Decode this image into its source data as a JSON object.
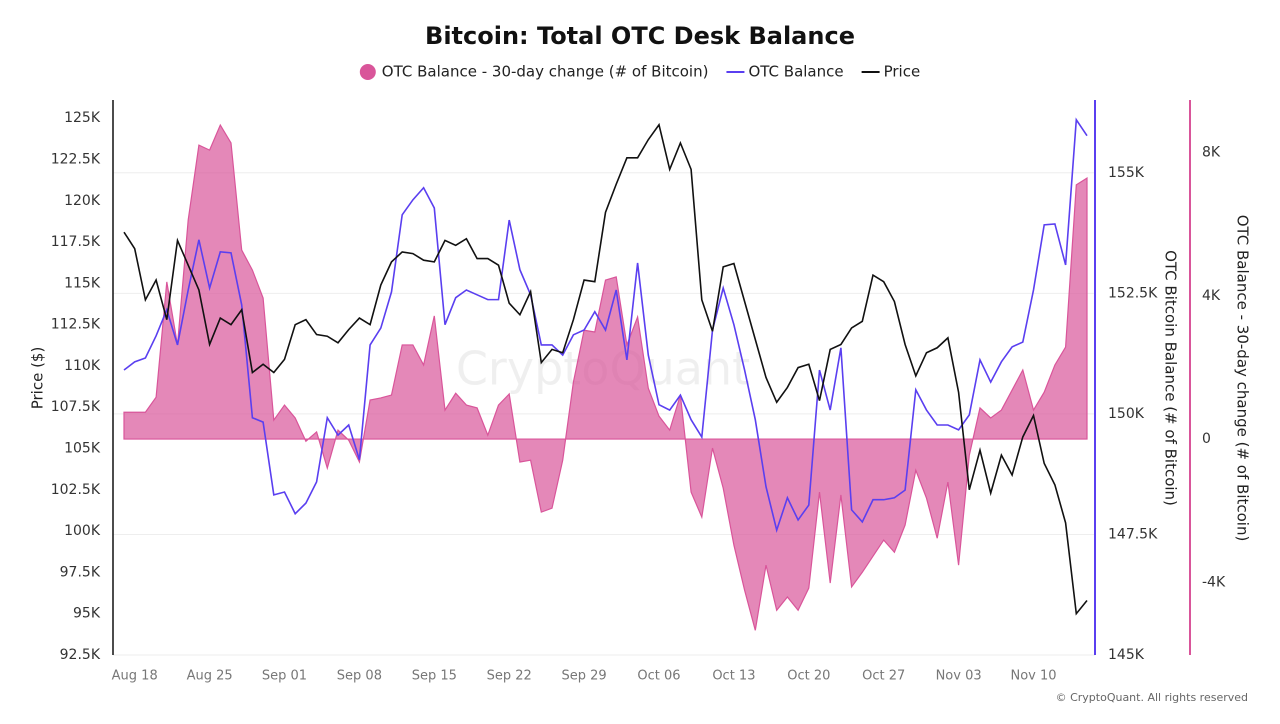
{
  "chart_data": {
    "type": "line",
    "title": "Bitcoin: Total OTC Desk Balance",
    "watermark": "CryptoQuant",
    "footer": "© CryptoQuant. All rights reserved",
    "ylabel": "Price ($)",
    "y2label": "OTC Bitcoin Balance (# of Bitcoin)",
    "y3label": "OTC Balance - 30-day change (# of Bitcoin)",
    "legend": "top",
    "grid": true,
    "categories": [
      null,
      "Aug 18",
      null,
      null,
      null,
      null,
      null,
      null,
      "Aug 25",
      null,
      null,
      null,
      null,
      null,
      null,
      "Sep 01",
      null,
      null,
      null,
      null,
      null,
      null,
      "Sep 08",
      null,
      null,
      null,
      null,
      null,
      null,
      "Sep 15",
      null,
      null,
      null,
      null,
      null,
      null,
      "Sep 22",
      null,
      null,
      null,
      null,
      null,
      null,
      "Sep 29",
      null,
      null,
      null,
      null,
      null,
      null,
      "Oct 06",
      null,
      null,
      null,
      null,
      null,
      null,
      "Oct 13",
      null,
      null,
      null,
      null,
      null,
      null,
      "Oct 20",
      null,
      null,
      null,
      null,
      null,
      null,
      "Oct 27",
      null,
      null,
      null,
      null,
      null,
      null,
      "Nov 03",
      null,
      null,
      null,
      null,
      null,
      null,
      "Nov 10",
      null,
      null,
      null,
      null,
      null
    ],
    "ylim": [
      92500,
      126100
    ],
    "yticks": [
      {
        "value": 92500,
        "label": "92.5K"
      },
      {
        "value": 95000,
        "label": "95K"
      },
      {
        "value": 97500,
        "label": "97.5K"
      },
      {
        "value": 100000,
        "label": "100K"
      },
      {
        "value": 102500,
        "label": "102.5K"
      },
      {
        "value": 105000,
        "label": "105K"
      },
      {
        "value": 107500,
        "label": "107.5K"
      },
      {
        "value": 110000,
        "label": "110K"
      },
      {
        "value": 112500,
        "label": "112.5K"
      },
      {
        "value": 115000,
        "label": "115K"
      },
      {
        "value": 117500,
        "label": "117.5K"
      },
      {
        "value": 120000,
        "label": "120K"
      },
      {
        "value": 122500,
        "label": "122.5K"
      },
      {
        "value": 125000,
        "label": "125K"
      }
    ],
    "y2lim": [
      145000,
      156510
    ],
    "y2ticks": [
      {
        "value": 145000,
        "label": "145K"
      },
      {
        "value": 147500,
        "label": "147.5K"
      },
      {
        "value": 150000,
        "label": "150K"
      },
      {
        "value": 152500,
        "label": "152.5K"
      },
      {
        "value": 155000,
        "label": "155K"
      }
    ],
    "y3lim": [
      -6030,
      9470
    ],
    "y3ticks": [
      {
        "value": -4000,
        "label": "-4K"
      },
      0,
      {
        "value": 4000,
        "label": "4K"
      },
      {
        "value": 8000,
        "label": "8K"
      }
    ],
    "series": [
      {
        "name": "OTC Balance - 30-day change (# of Bitcoin)",
        "type": "area",
        "axis": "y3",
        "color": "#d9559a",
        "values": [
          750,
          750,
          750,
          1170,
          4390,
          2630,
          6120,
          8210,
          8070,
          8770,
          8270,
          5280,
          4720,
          3940,
          530,
          950,
          590,
          -60,
          200,
          -810,
          250,
          -30,
          -640,
          1090,
          1150,
          1230,
          2630,
          2630,
          2070,
          3440,
          810,
          1280,
          950,
          870,
          110,
          950,
          1260,
          -640,
          -590,
          -2040,
          -1930,
          -590,
          1590,
          3040,
          2990,
          4440,
          4530,
          2630,
          3410,
          1420,
          640,
          250,
          1230,
          -1480,
          -2180,
          -250,
          -1370,
          -2960,
          -4220,
          -5340,
          -3520,
          -4780,
          -4410,
          -4780,
          -4160,
          -1480,
          -4020,
          -1560,
          -4130,
          -3720,
          -3270,
          -2820,
          -3160,
          -2400,
          -870,
          -1650,
          -2770,
          -1200,
          -3520,
          -450,
          870,
          590,
          810,
          1370,
          1930,
          810,
          1310,
          2070,
          2570,
          7100,
          7290
        ]
      },
      {
        "name": "OTC Balance",
        "type": "line",
        "axis": "y2",
        "color": "#5a3ff0",
        "values": [
          150910,
          151080,
          151160,
          151620,
          152160,
          151430,
          152570,
          153610,
          152610,
          153360,
          153340,
          152260,
          149920,
          149830,
          148320,
          148380,
          147930,
          148150,
          148590,
          149920,
          149560,
          149770,
          149050,
          151430,
          151780,
          152530,
          154130,
          154440,
          154690,
          154270,
          151850,
          152410,
          152570,
          152470,
          152370,
          152370,
          154020,
          152990,
          152470,
          151430,
          151430,
          151220,
          151640,
          151740,
          152120,
          151740,
          152570,
          151120,
          153130,
          151220,
          150190,
          150080,
          150390,
          149880,
          149520,
          151740,
          152610,
          151850,
          150910,
          149880,
          148490,
          147590,
          148260,
          147800,
          148110,
          150910,
          150080,
          151370,
          148010,
          147760,
          148220,
          148220,
          148260,
          148420,
          150500,
          150080,
          149770,
          149770,
          149670,
          149980,
          151120,
          150660,
          151080,
          151390,
          151490,
          152570,
          153920,
          153940,
          153090,
          156100,
          155770
        ]
      },
      {
        "name": "Price",
        "type": "line",
        "axis": "y",
        "color": "#111111",
        "values": [
          118100,
          117100,
          114000,
          115200,
          112800,
          117600,
          116100,
          114600,
          111300,
          112900,
          112500,
          113400,
          109600,
          110100,
          109600,
          110400,
          112500,
          112800,
          111900,
          111800,
          111400,
          112200,
          112900,
          112500,
          114900,
          116300,
          116900,
          116800,
          116400,
          116300,
          117600,
          117300,
          117700,
          116500,
          116500,
          116100,
          113800,
          113100,
          114500,
          110200,
          111000,
          110800,
          112800,
          115200,
          115100,
          119300,
          121000,
          122600,
          122600,
          123700,
          124600,
          121900,
          123500,
          121900,
          114000,
          112100,
          116000,
          116200,
          113900,
          111600,
          109300,
          107800,
          108700,
          109900,
          110100,
          107900,
          111000,
          111300,
          112300,
          112700,
          115500,
          115100,
          113900,
          111300,
          109400,
          110800,
          111100,
          111700,
          108400,
          102500,
          104900,
          102300,
          104600,
          103400,
          105700,
          107000,
          104100,
          102800,
          100500,
          95000,
          95800
        ]
      }
    ]
  }
}
